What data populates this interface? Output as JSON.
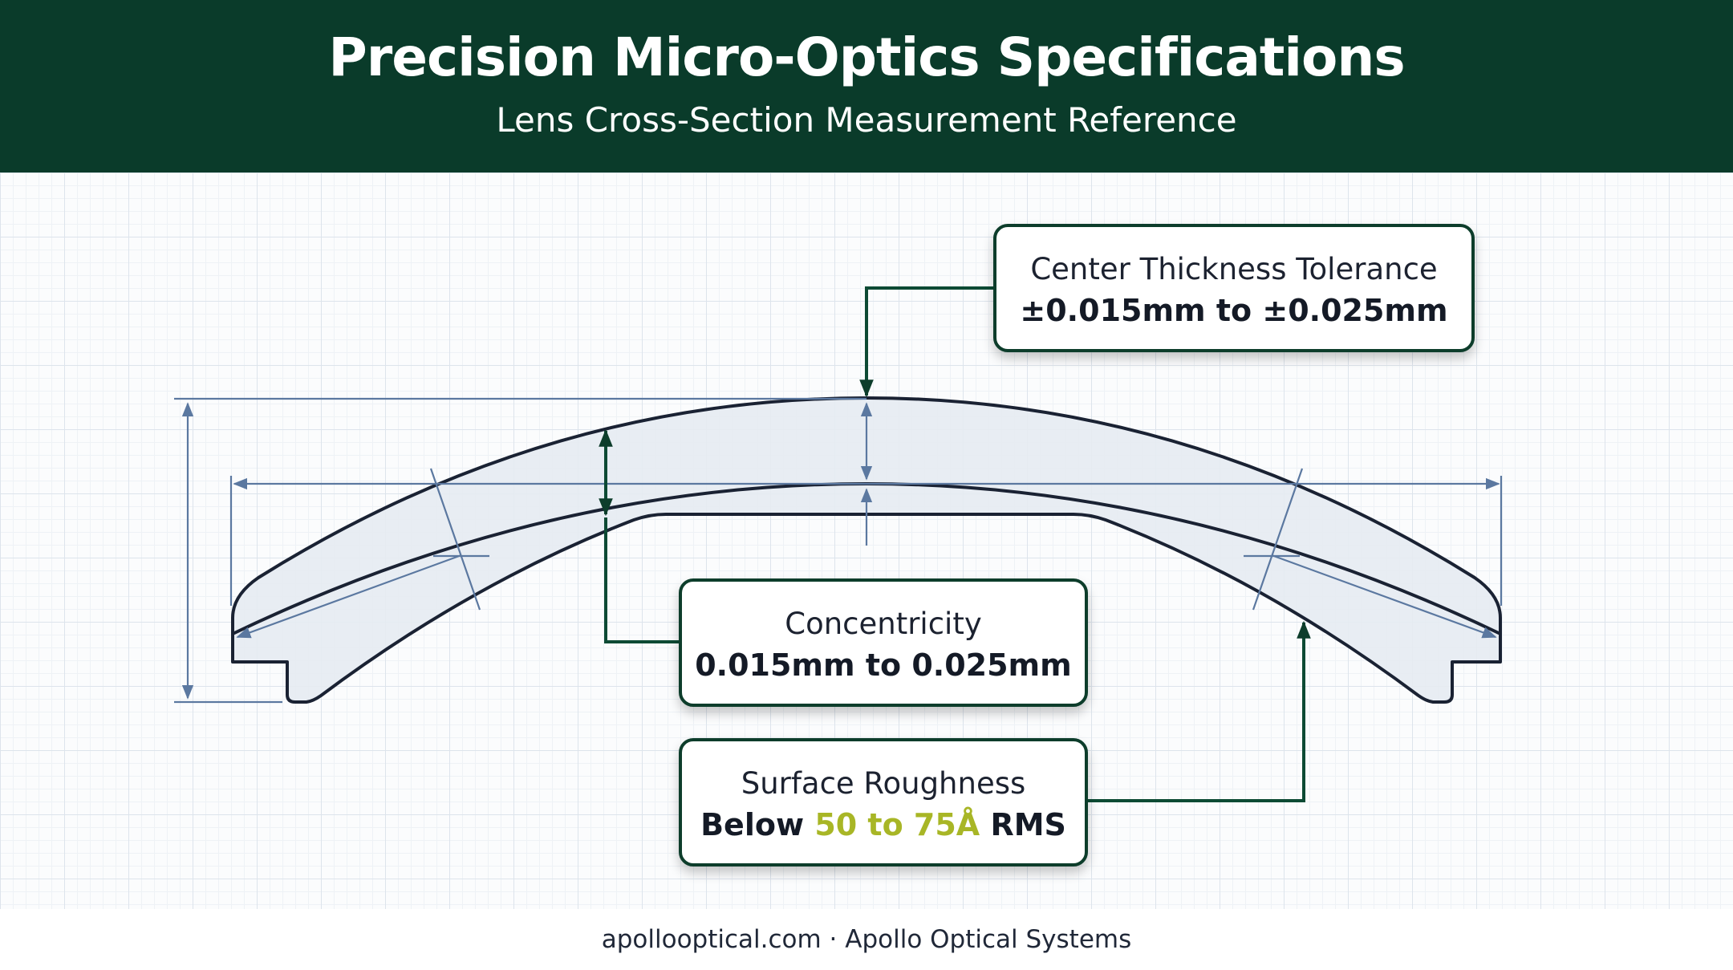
{
  "header": {
    "title": "Precision Micro-Optics Specifications",
    "subtitle": "Lens Cross-Section Measurement Reference"
  },
  "callouts": {
    "center_thickness": {
      "label": "Center Thickness Tolerance",
      "value": "±0.015mm to ±0.025mm"
    },
    "concentricity": {
      "label": "Concentricity",
      "value": "0.015mm to 0.025mm"
    },
    "surface_roughness": {
      "label": "Surface Roughness",
      "value_prefix": "Below",
      "value_highlight": "50 to 75Å",
      "value_suffix": "RMS"
    }
  },
  "footer": {
    "text": "apollooptical.com · Apollo Optical Systems"
  },
  "colors": {
    "header_bg": "#0a3b2a",
    "callout_border": "#0d3d2b",
    "leader_line": "#0d4a34",
    "lens_outline": "#1a2233",
    "lens_fill": "#e6ebf2",
    "dimension_line": "#5b78a0",
    "highlight": "#a8b626"
  }
}
